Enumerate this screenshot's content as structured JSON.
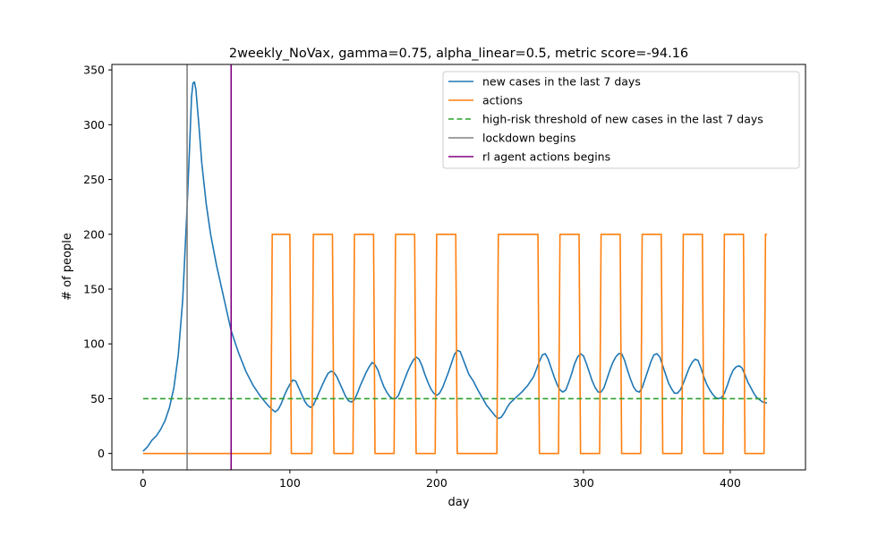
{
  "chart_data": {
    "type": "line",
    "title": "2weekly_NoVax, gamma=0.75, alpha_linear=0.5, metric score=-94.16",
    "xlabel": "day",
    "ylabel": "# of people",
    "xlim": [
      -21.25,
      451.25
    ],
    "ylim": [
      -15,
      355
    ],
    "xticks": [
      0,
      100,
      200,
      300,
      400
    ],
    "yticks": [
      0,
      50,
      100,
      150,
      200,
      250,
      300,
      350
    ],
    "grid": false,
    "legend_position": "top-right",
    "colors": {
      "cases": "#1f77b4",
      "actions": "#ff7f0e",
      "threshold": "#2ca02c",
      "lockdown": "#808080",
      "rl": "#800080"
    },
    "series": [
      {
        "name": "new cases in the last 7 days",
        "style": "solid",
        "color": "#1f77b4",
        "points": [
          [
            0,
            2
          ],
          [
            3,
            6
          ],
          [
            6,
            12
          ],
          [
            9,
            16
          ],
          [
            12,
            22
          ],
          [
            15,
            30
          ],
          [
            18,
            42
          ],
          [
            21,
            60
          ],
          [
            24,
            90
          ],
          [
            27,
            140
          ],
          [
            30,
            225
          ],
          [
            32,
            290
          ],
          [
            33,
            325
          ],
          [
            34,
            338
          ],
          [
            35,
            339
          ],
          [
            36,
            332
          ],
          [
            38,
            300
          ],
          [
            40,
            265
          ],
          [
            43,
            228
          ],
          [
            46,
            200
          ],
          [
            50,
            172
          ],
          [
            55,
            142
          ],
          [
            60,
            112
          ],
          [
            65,
            92
          ],
          [
            70,
            75
          ],
          [
            75,
            62
          ],
          [
            80,
            52
          ],
          [
            85,
            44
          ],
          [
            88,
            40
          ],
          [
            90,
            38
          ],
          [
            92,
            40
          ],
          [
            94,
            45
          ],
          [
            96,
            52
          ],
          [
            98,
            58
          ],
          [
            100,
            63
          ],
          [
            102,
            67
          ],
          [
            104,
            66
          ],
          [
            106,
            60
          ],
          [
            108,
            54
          ],
          [
            110,
            48
          ],
          [
            112,
            44
          ],
          [
            114,
            42
          ],
          [
            116,
            44
          ],
          [
            118,
            50
          ],
          [
            120,
            56
          ],
          [
            122,
            62
          ],
          [
            124,
            68
          ],
          [
            126,
            73
          ],
          [
            128,
            75
          ],
          [
            130,
            74
          ],
          [
            132,
            70
          ],
          [
            134,
            64
          ],
          [
            136,
            58
          ],
          [
            138,
            52
          ],
          [
            140,
            48
          ],
          [
            142,
            47
          ],
          [
            144,
            49
          ],
          [
            146,
            55
          ],
          [
            148,
            62
          ],
          [
            150,
            68
          ],
          [
            152,
            74
          ],
          [
            154,
            79
          ],
          [
            156,
            83
          ],
          [
            158,
            81
          ],
          [
            160,
            76
          ],
          [
            162,
            68
          ],
          [
            164,
            61
          ],
          [
            166,
            56
          ],
          [
            168,
            52
          ],
          [
            170,
            50
          ],
          [
            172,
            50
          ],
          [
            174,
            53
          ],
          [
            176,
            60
          ],
          [
            178,
            67
          ],
          [
            180,
            74
          ],
          [
            182,
            80
          ],
          [
            184,
            85
          ],
          [
            186,
            88
          ],
          [
            188,
            86
          ],
          [
            190,
            80
          ],
          [
            192,
            72
          ],
          [
            194,
            65
          ],
          [
            196,
            59
          ],
          [
            198,
            55
          ],
          [
            200,
            53
          ],
          [
            202,
            55
          ],
          [
            204,
            60
          ],
          [
            206,
            67
          ],
          [
            208,
            74
          ],
          [
            210,
            82
          ],
          [
            212,
            90
          ],
          [
            214,
            94
          ],
          [
            216,
            93
          ],
          [
            218,
            86
          ],
          [
            220,
            79
          ],
          [
            222,
            72
          ],
          [
            225,
            66
          ],
          [
            228,
            58
          ],
          [
            231,
            51
          ],
          [
            234,
            44
          ],
          [
            237,
            39
          ],
          [
            240,
            34
          ],
          [
            242,
            32
          ],
          [
            244,
            33
          ],
          [
            246,
            37
          ],
          [
            248,
            42
          ],
          [
            250,
            46
          ],
          [
            254,
            51
          ],
          [
            258,
            56
          ],
          [
            262,
            62
          ],
          [
            266,
            70
          ],
          [
            268,
            77
          ],
          [
            270,
            84
          ],
          [
            272,
            90
          ],
          [
            274,
            91
          ],
          [
            276,
            86
          ],
          [
            278,
            78
          ],
          [
            280,
            70
          ],
          [
            282,
            63
          ],
          [
            284,
            58
          ],
          [
            286,
            56
          ],
          [
            288,
            58
          ],
          [
            290,
            65
          ],
          [
            292,
            73
          ],
          [
            294,
            82
          ],
          [
            296,
            88
          ],
          [
            298,
            91
          ],
          [
            300,
            89
          ],
          [
            302,
            82
          ],
          [
            304,
            74
          ],
          [
            306,
            66
          ],
          [
            308,
            60
          ],
          [
            310,
            56
          ],
          [
            312,
            56
          ],
          [
            314,
            60
          ],
          [
            316,
            68
          ],
          [
            318,
            76
          ],
          [
            320,
            83
          ],
          [
            322,
            88
          ],
          [
            324,
            91
          ],
          [
            326,
            91
          ],
          [
            328,
            85
          ],
          [
            330,
            76
          ],
          [
            332,
            68
          ],
          [
            334,
            61
          ],
          [
            336,
            57
          ],
          [
            338,
            56
          ],
          [
            340,
            60
          ],
          [
            342,
            68
          ],
          [
            344,
            76
          ],
          [
            346,
            84
          ],
          [
            348,
            90
          ],
          [
            350,
            91
          ],
          [
            352,
            88
          ],
          [
            354,
            80
          ],
          [
            356,
            72
          ],
          [
            358,
            64
          ],
          [
            360,
            59
          ],
          [
            362,
            55
          ],
          [
            364,
            55
          ],
          [
            366,
            58
          ],
          [
            368,
            64
          ],
          [
            370,
            71
          ],
          [
            372,
            78
          ],
          [
            374,
            83
          ],
          [
            376,
            86
          ],
          [
            378,
            85
          ],
          [
            380,
            78
          ],
          [
            382,
            70
          ],
          [
            384,
            63
          ],
          [
            386,
            58
          ],
          [
            388,
            54
          ],
          [
            390,
            51
          ],
          [
            392,
            50
          ],
          [
            394,
            51
          ],
          [
            396,
            55
          ],
          [
            398,
            62
          ],
          [
            400,
            70
          ],
          [
            402,
            76
          ],
          [
            404,
            79
          ],
          [
            406,
            80
          ],
          [
            408,
            78
          ],
          [
            410,
            72
          ],
          [
            412,
            65
          ],
          [
            414,
            60
          ],
          [
            416,
            55
          ],
          [
            418,
            51
          ],
          [
            420,
            49
          ],
          [
            422,
            47
          ],
          [
            425,
            46
          ]
        ]
      },
      {
        "name": "actions",
        "style": "solid",
        "color": "#ff7f0e",
        "points": [
          [
            0,
            0
          ],
          [
            87,
            0
          ],
          [
            88,
            200
          ],
          [
            100,
            200
          ],
          [
            101,
            0
          ],
          [
            115,
            0
          ],
          [
            116,
            200
          ],
          [
            129,
            200
          ],
          [
            130,
            0
          ],
          [
            143,
            0
          ],
          [
            144,
            200
          ],
          [
            157,
            200
          ],
          [
            158,
            0
          ],
          [
            171,
            0
          ],
          [
            172,
            200
          ],
          [
            185,
            200
          ],
          [
            186,
            0
          ],
          [
            199,
            0
          ],
          [
            200,
            200
          ],
          [
            213,
            200
          ],
          [
            214,
            0
          ],
          [
            241,
            0
          ],
          [
            242,
            200
          ],
          [
            269,
            200
          ],
          [
            270,
            0
          ],
          [
            283,
            0
          ],
          [
            284,
            200
          ],
          [
            297,
            200
          ],
          [
            298,
            0
          ],
          [
            311,
            0
          ],
          [
            312,
            200
          ],
          [
            325,
            200
          ],
          [
            326,
            0
          ],
          [
            339,
            0
          ],
          [
            340,
            200
          ],
          [
            353,
            200
          ],
          [
            354,
            0
          ],
          [
            367,
            0
          ],
          [
            368,
            200
          ],
          [
            381,
            200
          ],
          [
            382,
            0
          ],
          [
            395,
            0
          ],
          [
            396,
            200
          ],
          [
            409,
            200
          ],
          [
            410,
            0
          ],
          [
            423,
            0
          ],
          [
            424,
            200
          ],
          [
            425,
            200
          ]
        ]
      },
      {
        "name": "high-risk threshold of new cases in the last 7 days",
        "style": "dashed",
        "color": "#2ca02c",
        "points": [
          [
            0,
            50
          ],
          [
            425,
            50
          ]
        ]
      }
    ],
    "vlines": [
      {
        "name": "lockdown begins",
        "x": 30,
        "color": "#808080"
      },
      {
        "name": "rl agent actions begins",
        "x": 60,
        "color": "#800080"
      }
    ],
    "legend": [
      {
        "label": "new cases in the last 7 days",
        "color": "#1f77b4",
        "style": "solid"
      },
      {
        "label": "actions",
        "color": "#ff7f0e",
        "style": "solid"
      },
      {
        "label": "high-risk threshold of new cases in the last 7 days",
        "color": "#2ca02c",
        "style": "dashed"
      },
      {
        "label": "lockdown begins",
        "color": "#808080",
        "style": "solid"
      },
      {
        "label": "rl agent actions begins",
        "color": "#800080",
        "style": "solid"
      }
    ]
  }
}
